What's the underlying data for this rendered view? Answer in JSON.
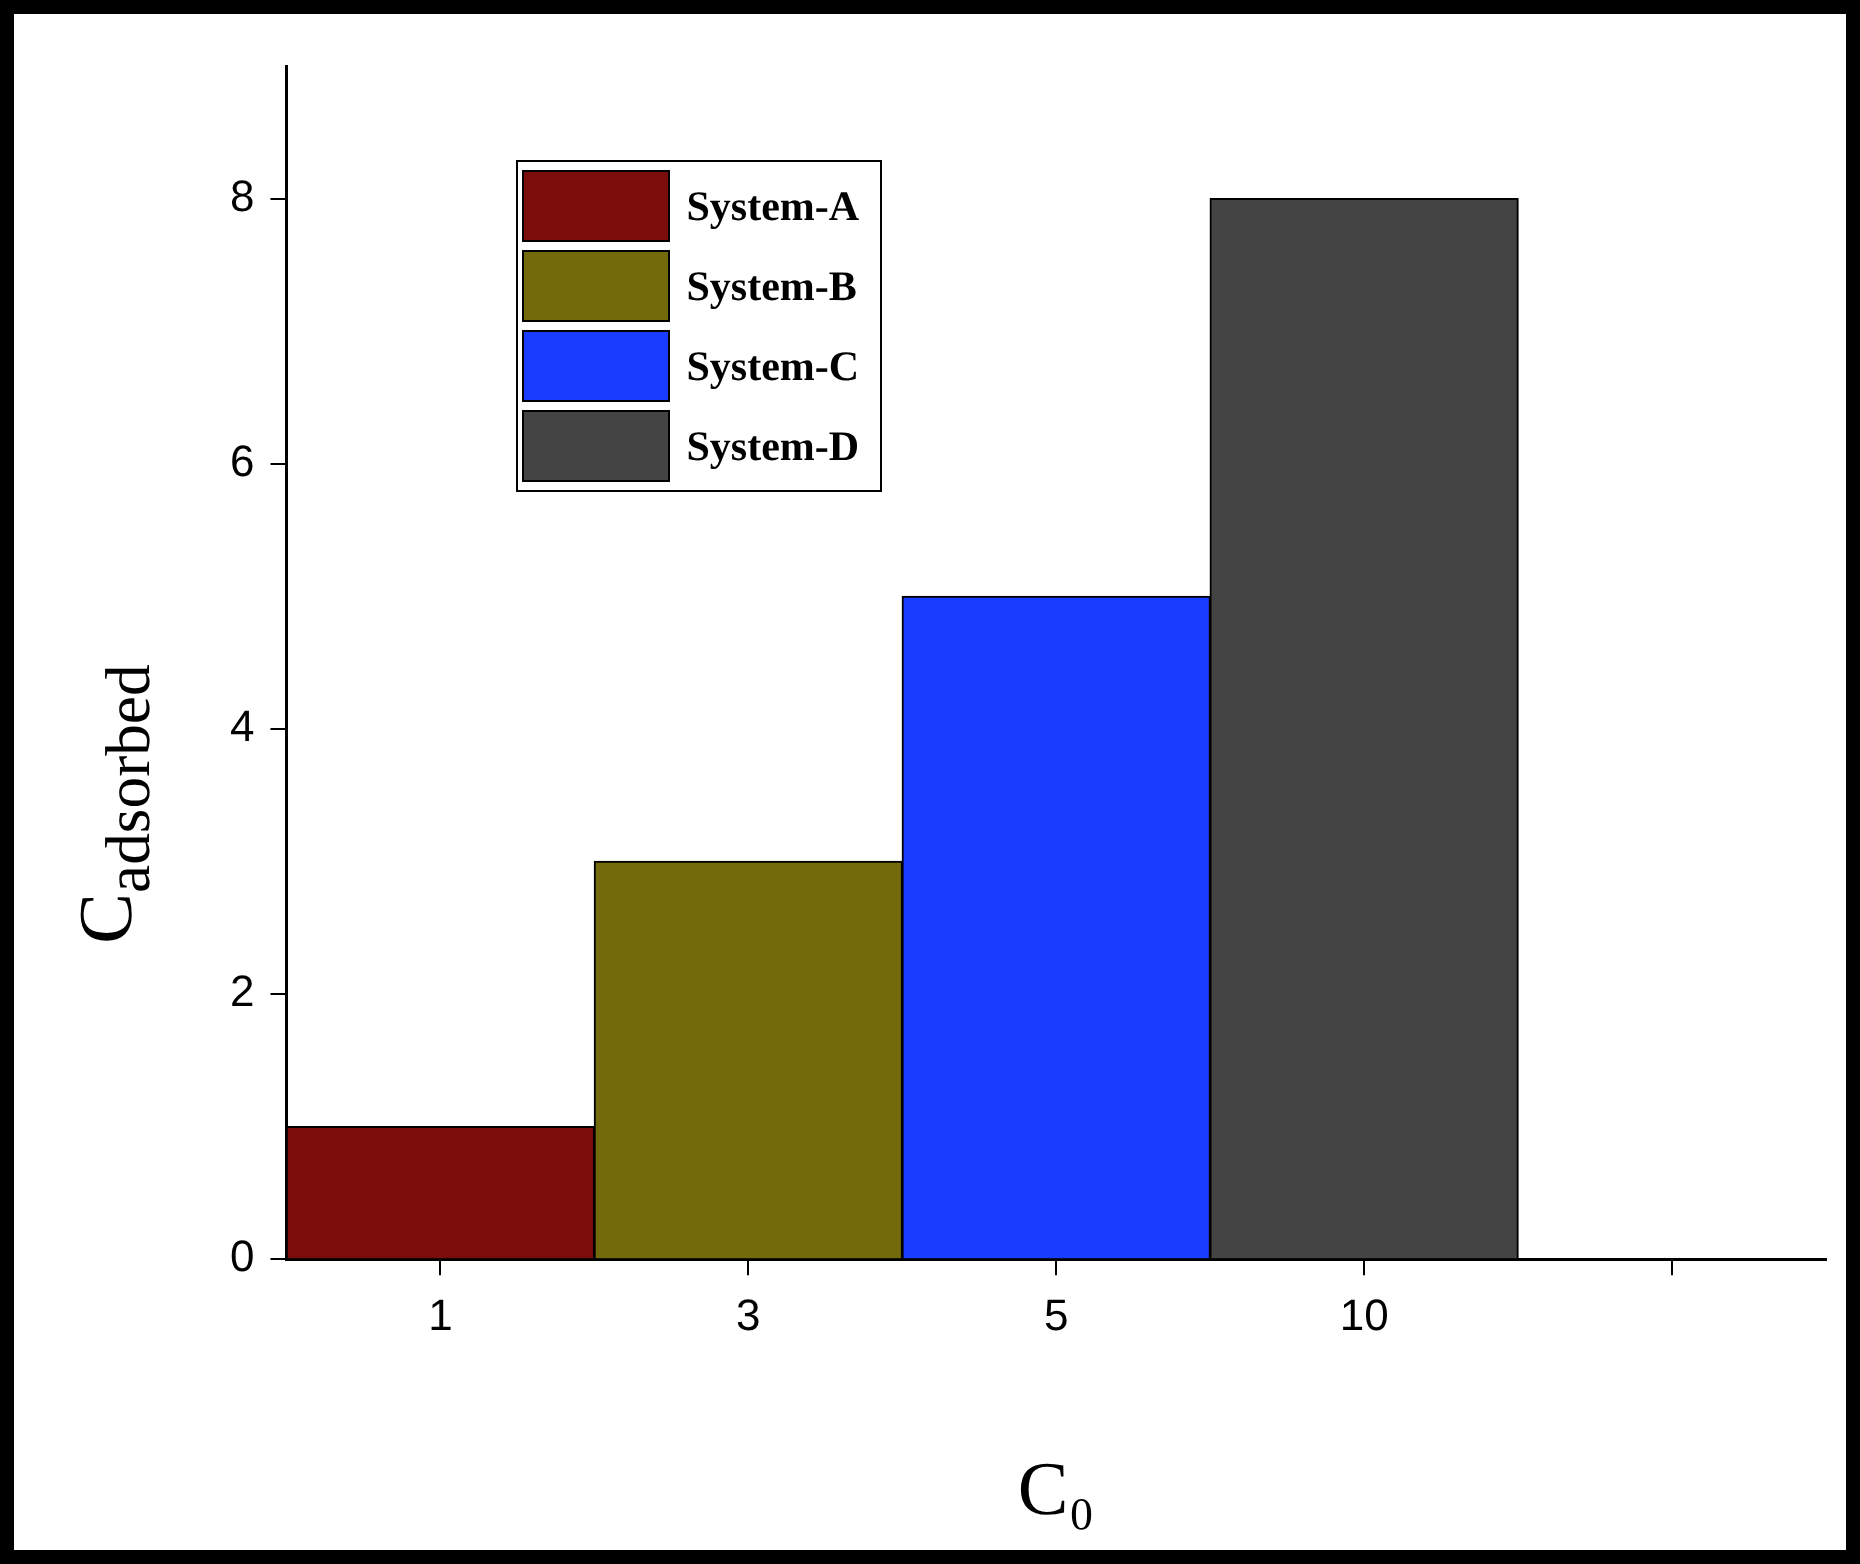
{
  "chart_data": {
    "type": "bar",
    "xlabel": "C₀",
    "ylabel": "C$_{adsorbed}$",
    "categories": [
      "1",
      "3",
      "5",
      "10",
      null
    ],
    "series": [
      {
        "name": "System-A",
        "color": "#7b0c0c",
        "values": [
          1,
          null,
          null,
          null,
          null
        ]
      },
      {
        "name": "System-B",
        "color": "#736a0c",
        "values": [
          null,
          3,
          null,
          null,
          null
        ]
      },
      {
        "name": "System-C",
        "color": "#1a3cff",
        "values": [
          null,
          null,
          5,
          null,
          null
        ]
      },
      {
        "name": "System-D",
        "color": "#444444",
        "values": [
          null,
          null,
          null,
          8,
          null
        ]
      }
    ],
    "ylim": [
      0,
      9
    ],
    "yticks": [
      0,
      2,
      4,
      6,
      8
    ],
    "grid": false,
    "legend": "top left"
  }
}
